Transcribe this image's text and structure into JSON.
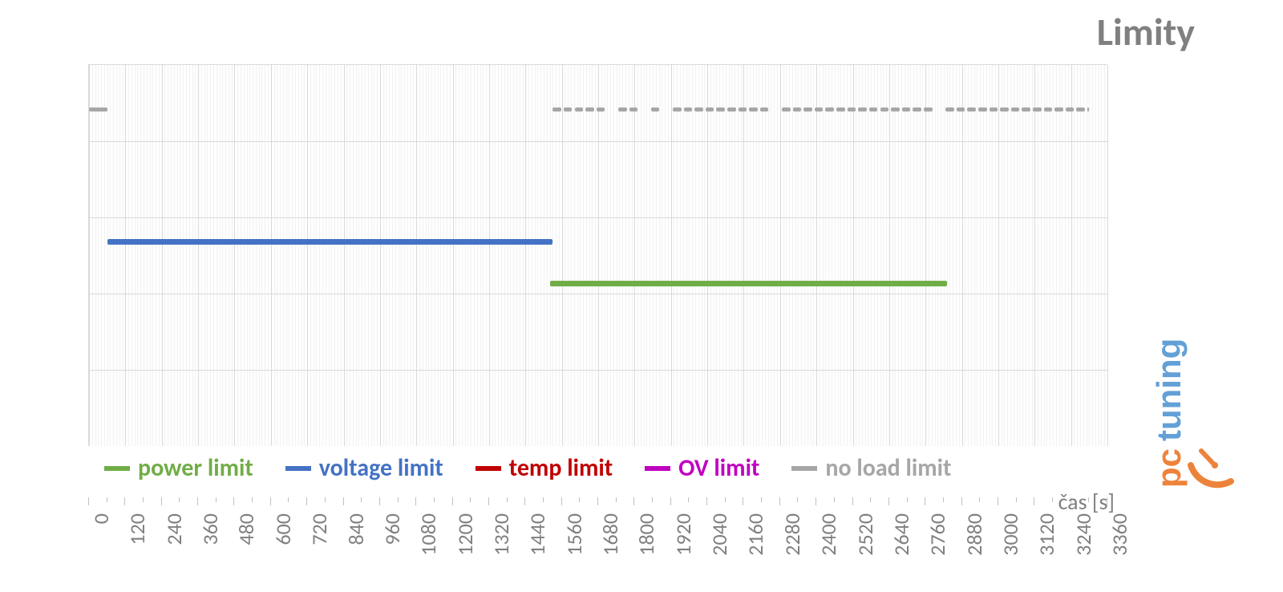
{
  "chart": {
    "type": "line-timeline",
    "title": "Limity",
    "title_fontsize": 48,
    "title_color": "#808080",
    "background_color": "#ffffff",
    "plot_bg": "#fefefe",
    "grid_major_color": "#d9d9d9",
    "grid_minor_color": "#f2f2f2",
    "x_axis": {
      "title": "čas [s]",
      "title_fontsize": 28,
      "min": 0,
      "max": 3360,
      "tick_step": 120,
      "minor_divisions": 12,
      "tick_labels": [
        "0",
        "120",
        "240",
        "360",
        "480",
        "600",
        "720",
        "840",
        "960",
        "1080",
        "1200",
        "1320",
        "1440",
        "1560",
        "1680",
        "1800",
        "1920",
        "2040",
        "2160",
        "2280",
        "2400",
        "2520",
        "2640",
        "2760",
        "2880",
        "3000",
        "3120",
        "3240",
        "3360"
      ],
      "label_fontsize": 26,
      "label_color": "#808080"
    },
    "y_axis": {
      "levels": 5,
      "hidden_labels": true
    },
    "legend": {
      "fontsize": 30,
      "items": [
        {
          "label": "power limit",
          "color": "#70ad47"
        },
        {
          "label": "voltage limit",
          "color": "#4472c4"
        },
        {
          "label": "temp limit",
          "color": "#c00000"
        },
        {
          "label": "OV limit",
          "color": "#c000c0"
        },
        {
          "label": "no load limit",
          "color": "#a6a6a6"
        }
      ]
    },
    "series": {
      "no_load_limit": {
        "color": "#a6a6a6",
        "y": 1.0,
        "stroke": 5,
        "segments_solid": [
          {
            "x_start": 0,
            "x_end": 60
          }
        ],
        "segments_dashed": [
          {
            "x_start": 1530,
            "x_end": 3300,
            "gap_positions": [
              1700,
              1760,
              1810,
              1890,
              1940,
              2200,
              2250,
              2780,
              2880
            ]
          }
        ]
      },
      "voltage_limit": {
        "color": "#4472c4",
        "y": 0.5,
        "stroke": 7,
        "segments_solid": [
          {
            "x_start": 60,
            "x_end": 1530
          }
        ]
      },
      "power_limit": {
        "color": "#70ad47",
        "y": 0.34,
        "stroke": 7,
        "segments_solid": [
          {
            "x_start": 1520,
            "x_end": 2830
          }
        ]
      },
      "temp_limit": {
        "color": "#c00000",
        "y": null,
        "stroke": 6,
        "segments_solid": []
      },
      "ov_limit": {
        "color": "#c000c0",
        "y": null,
        "stroke": 6,
        "segments_solid": []
      }
    },
    "watermark": {
      "text_pc": "pc",
      "text_tuning": "tuning",
      "color_pc": "#ed7d31",
      "color_tuning": "#5b9bd5",
      "clock_stroke": "#ed7d31"
    }
  }
}
